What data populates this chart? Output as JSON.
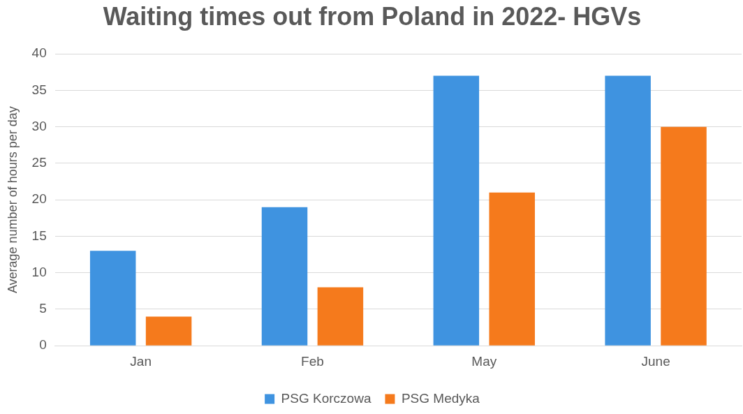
{
  "chart_data": {
    "type": "bar",
    "title": "Waiting times out from Poland in 2022- HGVs",
    "ylabel": "Average number of hours per day",
    "categories": [
      "Jan",
      "Feb",
      "May",
      "June"
    ],
    "series": [
      {
        "name": "PSG Korczowa",
        "color": "#3f93e0",
        "values": [
          13,
          19,
          37,
          37
        ]
      },
      {
        "name": "PSG Medyka",
        "color": "#f57a1c",
        "values": [
          4,
          8,
          21,
          30
        ]
      }
    ],
    "ylim": [
      0,
      40
    ],
    "yticks": [
      0,
      5,
      10,
      15,
      20,
      25,
      30,
      35,
      40
    ],
    "grid": "y",
    "legend": "bottom"
  }
}
